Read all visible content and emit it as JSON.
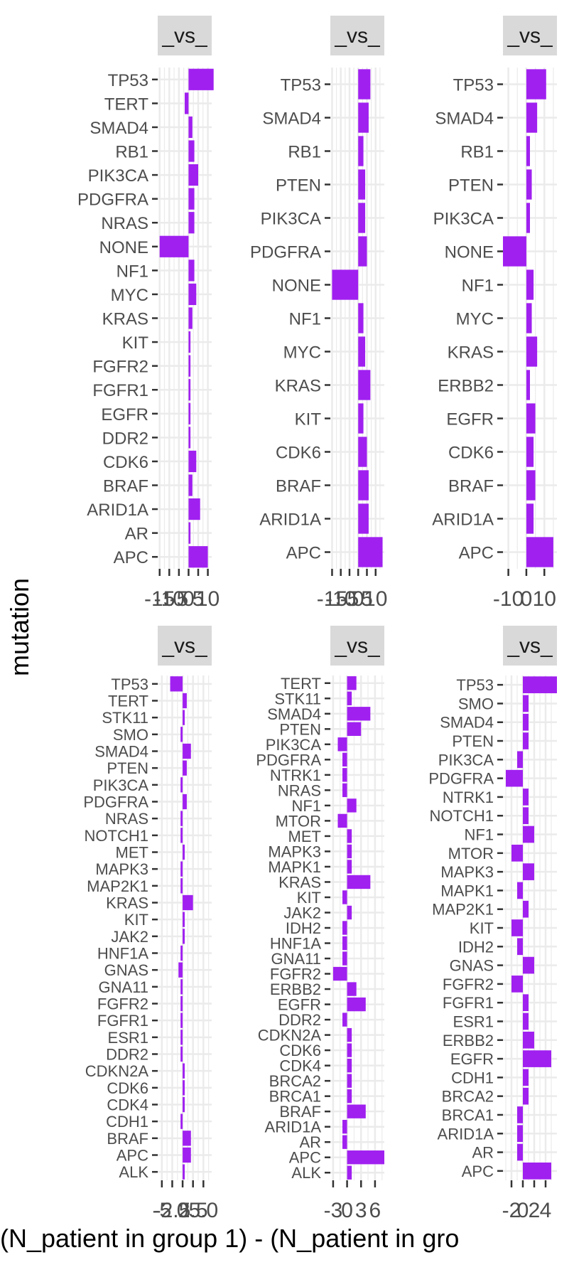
{
  "axis_title_y": "mutation",
  "axis_title_x": "(N_patient in group 1) - (N_patient in gro",
  "colors": {
    "bar": "#a020f0",
    "panel_bg": "#ffffff",
    "grid": "#ebebeb",
    "strip_bg": "#d9d9d9"
  },
  "chart_data": [
    {
      "type": "bar",
      "orientation": "horizontal",
      "strip": "_vs_",
      "xlim": [
        -16,
        12
      ],
      "tick_values": [
        -15,
        -10,
        -5,
        0,
        5,
        10
      ],
      "tick_labels": [
        "-15",
        "-10",
        "-5",
        "0",
        "5",
        "10"
      ],
      "categories": [
        "TP53",
        "TERT",
        "SMAD4",
        "RB1",
        "PIK3CA",
        "PDGFRA",
        "NRAS",
        "NONE",
        "NF1",
        "MYC",
        "KRAS",
        "KIT",
        "FGFR2",
        "FGFR1",
        "EGFR",
        "DDR2",
        "CDK6",
        "BRAF",
        "ARID1A",
        "AR",
        "APC"
      ],
      "values": [
        13,
        -2,
        2,
        3,
        5,
        3,
        3,
        -15,
        3,
        4,
        2,
        1,
        1,
        1,
        1,
        1,
        4,
        2,
        6,
        1,
        10
      ]
    },
    {
      "type": "bar",
      "orientation": "horizontal",
      "strip": "_vs_",
      "xlim": [
        -16,
        15
      ],
      "tick_values": [
        -15,
        -10,
        -5,
        0,
        5,
        10
      ],
      "tick_labels": [
        "-15",
        "-10",
        "-5",
        "0",
        "5",
        "10"
      ],
      "categories": [
        "TP53",
        "SMAD4",
        "RB1",
        "PTEN",
        "PIK3CA",
        "PDGFRA",
        "NONE",
        "NF1",
        "MYC",
        "KRAS",
        "KIT",
        "CDK6",
        "BRAF",
        "ARID1A",
        "APC"
      ],
      "values": [
        7,
        6,
        3,
        4,
        4,
        5,
        -15,
        3,
        4,
        7,
        3,
        5,
        6,
        6,
        14
      ]
    },
    {
      "type": "bar",
      "orientation": "horizontal",
      "strip": "_vs_",
      "xlim": [
        -13,
        17
      ],
      "tick_values": [
        -10,
        0,
        10
      ],
      "tick_labels": [
        "-10",
        "0",
        "10"
      ],
      "categories": [
        "TP53",
        "SMAD4",
        "RB1",
        "PTEN",
        "PIK3CA",
        "NONE",
        "NF1",
        "MYC",
        "KRAS",
        "ERBB2",
        "EGFR",
        "CDK6",
        "BRAF",
        "ARID1A",
        "APC"
      ],
      "values": [
        11,
        6,
        2,
        3,
        2,
        -13,
        4,
        3,
        6,
        2,
        5,
        4,
        5,
        4,
        15
      ]
    },
    {
      "type": "bar",
      "orientation": "horizontal",
      "strip": "_vs_",
      "xlim": [
        -6,
        7
      ],
      "tick_values": [
        -5,
        -2.5,
        0,
        2.5,
        5
      ],
      "tick_labels": [
        "-5",
        "-2.5",
        "0",
        "2.5",
        "5.0"
      ],
      "categories": [
        "TP53",
        "TERT",
        "STK11",
        "SMO",
        "SMAD4",
        "PTEN",
        "PIK3CA",
        "PDGFRA",
        "NRAS",
        "NOTCH1",
        "MET",
        "MAPK3",
        "MAP2K1",
        "KRAS",
        "KIT",
        "JAK2",
        "HNF1A",
        "GNAS",
        "GNA11",
        "FGFR2",
        "FGFR1",
        "ESR1",
        "DDR2",
        "CDKN2A",
        "CDK6",
        "CDK4",
        "CDH1",
        "BRAF",
        "APC",
        "ALK"
      ],
      "values": [
        -3,
        1,
        0.5,
        -0.5,
        2,
        1,
        -0.5,
        1,
        -0.5,
        -0.5,
        0.5,
        -0.5,
        -0.5,
        2.5,
        0.5,
        0.5,
        -0.5,
        -1,
        -0.5,
        -0.5,
        -0.5,
        -0.5,
        -0.5,
        0.5,
        0.5,
        0.5,
        -0.5,
        2,
        2,
        0.5
      ]
    },
    {
      "type": "bar",
      "orientation": "horizontal",
      "strip": "_vs_",
      "xlim": [
        -3.6,
        8
      ],
      "tick_values": [
        -3,
        0,
        3,
        6
      ],
      "tick_labels": [
        "-3",
        "0",
        "3",
        "6"
      ],
      "categories": [
        "TERT",
        "STK11",
        "SMAD4",
        "PTEN",
        "PIK3CA",
        "PDGFRA",
        "NTRK1",
        "NRAS",
        "NF1",
        "MTOR",
        "MET",
        "MAPK3",
        "MAPK1",
        "KRAS",
        "KIT",
        "JAK2",
        "IDH2",
        "HNF1A",
        "GNA11",
        "FGFR2",
        "ERBB2",
        "EGFR",
        "DDR2",
        "CDKN2A",
        "CDK6",
        "CDK4",
        "BRCA2",
        "BRCA1",
        "BRAF",
        "ARID1A",
        "AR",
        "APC",
        "ALK"
      ],
      "values": [
        2,
        1,
        5,
        3,
        -2,
        -1,
        -1,
        -1,
        2,
        -2,
        1,
        1,
        1,
        5,
        -1,
        1,
        -1,
        -1,
        -1,
        -3,
        2,
        4,
        -1,
        1,
        1,
        1,
        1,
        1,
        4,
        -1,
        -1,
        8,
        1
      ]
    },
    {
      "type": "bar",
      "orientation": "horizontal",
      "strip": "_vs_",
      "xlim": [
        -3.5,
        6
      ],
      "tick_values": [
        -2,
        0,
        2,
        4
      ],
      "tick_labels": [
        "-2",
        "0",
        "2",
        "4"
      ],
      "categories": [
        "TP53",
        "SMO",
        "SMAD4",
        "PTEN",
        "PIK3CA",
        "PDGFRA",
        "NTRK1",
        "NOTCH1",
        "NF1",
        "MTOR",
        "MAPK3",
        "MAPK1",
        "MAP2K1",
        "KIT",
        "IDH2",
        "GNAS",
        "FGFR2",
        "FGFR1",
        "ESR1",
        "ERBB2",
        "EGFR",
        "CDH1",
        "BRCA2",
        "BRCA1",
        "ARID1A",
        "AR",
        "APC"
      ],
      "values": [
        6,
        1,
        1,
        1,
        -1,
        -3,
        1,
        1,
        2,
        -2,
        2,
        -1,
        1,
        -2,
        -1,
        2,
        -2,
        1,
        1,
        2,
        5,
        1,
        1,
        -1,
        -1,
        -1,
        5
      ]
    }
  ]
}
